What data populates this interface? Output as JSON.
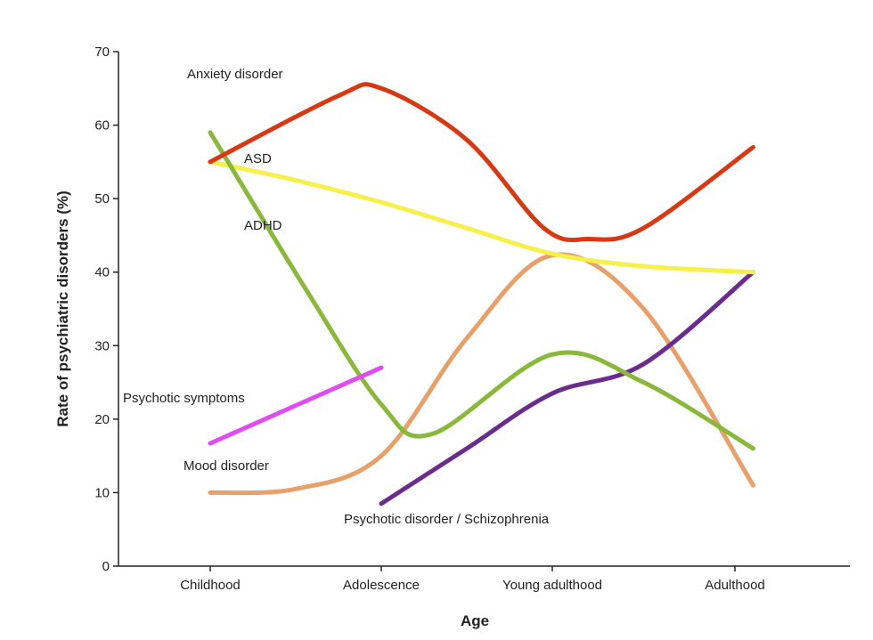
{
  "chart_data": {
    "type": "line",
    "title": "",
    "xlabel": "Age",
    "ylabel": "Rate of psychiatric disorders (%)",
    "categories": [
      "Childhood",
      "Adolescence",
      "Young adulthood",
      "Adulthood"
    ],
    "ylim": [
      0,
      70
    ],
    "yticks": [
      0,
      10,
      20,
      30,
      40,
      50,
      60,
      70
    ],
    "grid": false,
    "legend": "none",
    "series": [
      {
        "name": "Anxiety disorder",
        "color": "#d63a14",
        "x": [
          0,
          0.75,
          1.0,
          1.5,
          1.95,
          2.2,
          2.5,
          3.1
        ],
        "y": [
          55,
          64,
          65,
          58,
          46,
          44.5,
          46,
          57
        ]
      },
      {
        "name": "ASD",
        "color": "#f7f04a",
        "x": [
          0,
          0.5,
          1.0,
          1.5,
          2.0,
          2.5,
          3.1
        ],
        "y": [
          55,
          52.5,
          49.5,
          46,
          42.5,
          40.8,
          40
        ]
      },
      {
        "name": "ADHD",
        "color": "#8ab83a",
        "x": [
          0,
          0.55,
          1.0,
          1.3,
          2.0,
          2.5,
          3.1
        ],
        "y": [
          59,
          38,
          22,
          18,
          28.8,
          25,
          16
        ]
      },
      {
        "name": "Psychotic symptoms",
        "color": "#df4cf0",
        "x": [
          0,
          1.0
        ],
        "y": [
          16.7,
          27
        ]
      },
      {
        "name": "Mood disorder",
        "color": "#e8a06a",
        "x": [
          0,
          0.5,
          1.0,
          1.5,
          2.0,
          2.5,
          3.1
        ],
        "y": [
          10,
          10.5,
          15,
          31,
          42.3,
          35,
          11
        ]
      },
      {
        "name": "Psychotic disorder / Schizophrenia",
        "color": "#6a2d8e",
        "x": [
          1.0,
          1.5,
          2.0,
          2.5,
          3.1
        ],
        "y": [
          8.5,
          16,
          23.5,
          27.5,
          40
        ]
      }
    ],
    "annotations": [
      {
        "text": "Anxiety disorder",
        "series": "Anxiety disorder"
      },
      {
        "text": "ASD",
        "series": "ASD"
      },
      {
        "text": "ADHD",
        "series": "ADHD"
      },
      {
        "text": "Psychotic symptoms",
        "series": "Psychotic symptoms"
      },
      {
        "text": "Mood disorder",
        "series": "Mood disorder"
      },
      {
        "text": "Psychotic disorder / Schizophrenia",
        "series": "Psychotic disorder / Schizophrenia"
      }
    ]
  }
}
